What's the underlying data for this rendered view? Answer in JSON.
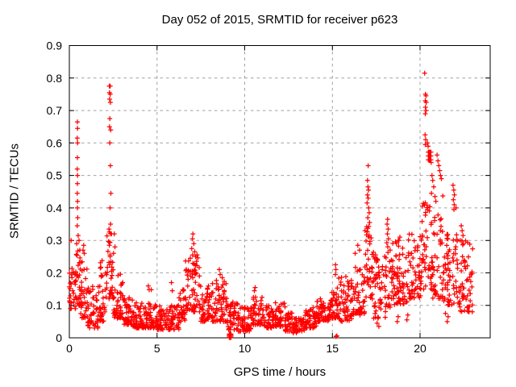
{
  "chart_data": {
    "type": "scatter",
    "title": "Day 052 of 2015, SRMTID for receiver p623",
    "xlabel": "GPS time / hours",
    "ylabel": "SRMTID / TECUs",
    "xlim": [
      0,
      24
    ],
    "ylim": [
      0,
      0.9
    ],
    "xticks": {
      "values": [
        0,
        5,
        10,
        15,
        20
      ],
      "labels": [
        "0",
        "5",
        "10",
        "15",
        "20"
      ]
    },
    "yticks": {
      "values": [
        0,
        0.1,
        0.2,
        0.3,
        0.4,
        0.5,
        0.6,
        0.7,
        0.8,
        0.9
      ],
      "labels": [
        "0",
        "0.1",
        "0.2",
        "0.3",
        "0.4",
        "0.5",
        "0.6",
        "0.7",
        "0.8",
        "0.9"
      ]
    },
    "grid": true,
    "legend": "none",
    "marker": "plus",
    "marker_color": "#ff0000",
    "grid_color": "#a0a0a0",
    "axis_color": "#000000",
    "background": "#ffffff",
    "data_extent_hours": [
      0,
      23.0
    ],
    "encoding_note": "bands = dense scatter envelopes [t_start, t_end, n_points, v_min, v_max, skew_toward_min]; outliers = individual visible points [hour, TECUs]; dense_clusters = solid blobs of overlapping markers",
    "bands": [
      [
        0.0,
        0.35,
        30,
        0.09,
        0.26,
        1.7
      ],
      [
        0.35,
        0.65,
        26,
        0.1,
        0.3,
        1.5
      ],
      [
        0.65,
        1.05,
        34,
        0.06,
        0.24,
        1.8
      ],
      [
        1.05,
        1.65,
        48,
        0.03,
        0.16,
        2.0
      ],
      [
        1.65,
        2.05,
        34,
        0.05,
        0.24,
        1.9
      ],
      [
        2.05,
        2.5,
        38,
        0.12,
        0.33,
        1.5
      ],
      [
        2.5,
        3.05,
        44,
        0.06,
        0.2,
        1.9
      ],
      [
        3.05,
        3.6,
        44,
        0.04,
        0.13,
        1.6
      ],
      [
        3.6,
        4.4,
        62,
        0.03,
        0.11,
        1.6
      ],
      [
        4.4,
        5.0,
        46,
        0.03,
        0.12,
        1.8
      ],
      [
        5.0,
        6.25,
        95,
        0.025,
        0.1,
        1.6
      ],
      [
        6.25,
        6.6,
        28,
        0.05,
        0.15,
        1.5
      ],
      [
        6.6,
        7.45,
        66,
        0.08,
        0.26,
        1.5
      ],
      [
        7.45,
        8.15,
        54,
        0.05,
        0.16,
        1.6
      ],
      [
        8.15,
        9.0,
        64,
        0.05,
        0.18,
        1.7
      ],
      [
        9.0,
        9.6,
        44,
        0.025,
        0.11,
        1.5
      ],
      [
        9.6,
        10.4,
        58,
        0.02,
        0.095,
        1.5
      ],
      [
        10.4,
        11.0,
        44,
        0.04,
        0.135,
        1.7
      ],
      [
        11.0,
        11.7,
        52,
        0.03,
        0.1,
        1.6
      ],
      [
        11.7,
        12.3,
        44,
        0.035,
        0.115,
        1.8
      ],
      [
        12.3,
        12.75,
        32,
        0.02,
        0.08,
        1.5
      ],
      [
        12.75,
        13.4,
        48,
        0.015,
        0.06,
        1.3
      ],
      [
        13.4,
        14.1,
        52,
        0.03,
        0.1,
        1.6
      ],
      [
        14.1,
        14.8,
        52,
        0.05,
        0.125,
        1.7
      ],
      [
        14.8,
        15.35,
        40,
        0.06,
        0.16,
        1.6
      ],
      [
        15.35,
        16.1,
        56,
        0.05,
        0.19,
        1.6
      ],
      [
        16.1,
        16.85,
        56,
        0.07,
        0.24,
        1.6
      ],
      [
        16.85,
        17.35,
        40,
        0.12,
        0.35,
        1.3
      ],
      [
        17.35,
        18.05,
        52,
        0.06,
        0.26,
        1.5
      ],
      [
        18.05,
        18.55,
        38,
        0.09,
        0.3,
        1.4
      ],
      [
        18.55,
        19.3,
        56,
        0.1,
        0.3,
        1.5
      ],
      [
        19.3,
        20.05,
        56,
        0.12,
        0.32,
        1.4
      ],
      [
        20.05,
        20.65,
        46,
        0.15,
        0.42,
        1.2
      ],
      [
        20.65,
        21.35,
        52,
        0.12,
        0.38,
        1.5
      ],
      [
        21.35,
        22.25,
        66,
        0.1,
        0.32,
        1.7
      ],
      [
        22.25,
        23.0,
        56,
        0.08,
        0.31,
        1.6
      ]
    ],
    "dense_clusters": [
      {
        "t0": 9.12,
        "t1": 9.22,
        "v0": 0.001,
        "v1": 0.012,
        "nx": 5,
        "ny": 4
      },
      {
        "t0": 20.47,
        "t1": 20.62,
        "v0": 0.548,
        "v1": 0.572,
        "nx": 4,
        "ny": 3
      }
    ],
    "outliers": [
      [
        0.46,
        0.665
      ],
      [
        0.47,
        0.645
      ],
      [
        0.45,
        0.615
      ],
      [
        0.47,
        0.6
      ],
      [
        0.46,
        0.555
      ],
      [
        0.45,
        0.52
      ],
      [
        0.47,
        0.5
      ],
      [
        0.46,
        0.475
      ],
      [
        0.45,
        0.445
      ],
      [
        0.47,
        0.42
      ],
      [
        0.46,
        0.4
      ],
      [
        0.48,
        0.37
      ],
      [
        0.45,
        0.345
      ],
      [
        0.5,
        0.315
      ],
      [
        0.55,
        0.3
      ],
      [
        0.42,
        0.29
      ],
      [
        0.6,
        0.27
      ],
      [
        0.1,
        0.3
      ],
      [
        0.78,
        0.27
      ],
      [
        0.82,
        0.285
      ],
      [
        0.85,
        0.26
      ],
      [
        2.28,
        0.775
      ],
      [
        2.33,
        0.775
      ],
      [
        2.29,
        0.755
      ],
      [
        2.33,
        0.75
      ],
      [
        2.3,
        0.735
      ],
      [
        2.34,
        0.725
      ],
      [
        2.31,
        0.675
      ],
      [
        2.29,
        0.65
      ],
      [
        2.36,
        0.64
      ],
      [
        2.31,
        0.6
      ],
      [
        2.34,
        0.53
      ],
      [
        2.37,
        0.445
      ],
      [
        2.32,
        0.4
      ],
      [
        2.35,
        0.35
      ],
      [
        2.26,
        0.335
      ],
      [
        2.4,
        0.32
      ],
      [
        2.56,
        0.32
      ],
      [
        2.6,
        0.28
      ],
      [
        2.52,
        0.26
      ],
      [
        4.5,
        0.16
      ],
      [
        4.55,
        0.148
      ],
      [
        4.67,
        0.148
      ],
      [
        5.82,
        0.17
      ],
      [
        5.87,
        0.145
      ],
      [
        7.05,
        0.32
      ],
      [
        7.02,
        0.305
      ],
      [
        7.1,
        0.29
      ],
      [
        6.98,
        0.275
      ],
      [
        7.15,
        0.265
      ],
      [
        7.2,
        0.25
      ],
      [
        6.9,
        0.245
      ],
      [
        7.25,
        0.235
      ],
      [
        8.55,
        0.21
      ],
      [
        8.6,
        0.195
      ],
      [
        8.72,
        0.185
      ],
      [
        10.6,
        0.155
      ],
      [
        10.55,
        0.145
      ],
      [
        15.18,
        0.225
      ],
      [
        15.2,
        0.21
      ],
      [
        15.17,
        0.195
      ],
      [
        15.21,
        0.004
      ],
      [
        15.26,
        0.006
      ],
      [
        16.45,
        0.285
      ],
      [
        16.55,
        0.27
      ],
      [
        16.3,
        0.26
      ],
      [
        17.04,
        0.53
      ],
      [
        17.0,
        0.485
      ],
      [
        17.03,
        0.465
      ],
      [
        17.06,
        0.455
      ],
      [
        17.0,
        0.44
      ],
      [
        17.04,
        0.43
      ],
      [
        16.98,
        0.415
      ],
      [
        17.07,
        0.4
      ],
      [
        17.1,
        0.385
      ],
      [
        17.02,
        0.37
      ],
      [
        17.12,
        0.355
      ],
      [
        17.55,
        0.045
      ],
      [
        17.6,
        0.06
      ],
      [
        17.65,
        0.035
      ],
      [
        18.7,
        0.05
      ],
      [
        18.75,
        0.065
      ],
      [
        19.25,
        0.055
      ],
      [
        19.3,
        0.07
      ],
      [
        21.55,
        0.05
      ],
      [
        21.6,
        0.065
      ],
      [
        21.45,
        0.075
      ],
      [
        18.15,
        0.365
      ],
      [
        18.12,
        0.35
      ],
      [
        18.18,
        0.335
      ],
      [
        18.14,
        0.32
      ],
      [
        18.2,
        0.305
      ],
      [
        18.85,
        0.31
      ],
      [
        18.8,
        0.3
      ],
      [
        20.26,
        0.815
      ],
      [
        20.31,
        0.75
      ],
      [
        20.34,
        0.745
      ],
      [
        20.3,
        0.73
      ],
      [
        20.35,
        0.725
      ],
      [
        20.31,
        0.71
      ],
      [
        20.34,
        0.7
      ],
      [
        20.3,
        0.69
      ],
      [
        20.29,
        0.625
      ],
      [
        20.32,
        0.61
      ],
      [
        20.3,
        0.595
      ],
      [
        20.42,
        0.6
      ],
      [
        20.46,
        0.59
      ],
      [
        20.63,
        0.54
      ],
      [
        20.68,
        0.5
      ],
      [
        20.72,
        0.485
      ],
      [
        20.78,
        0.465
      ],
      [
        20.65,
        0.445
      ],
      [
        20.85,
        0.435
      ],
      [
        20.9,
        0.42
      ],
      [
        20.97,
        0.563
      ],
      [
        21.02,
        0.545
      ],
      [
        21.07,
        0.53
      ],
      [
        21.12,
        0.515
      ],
      [
        21.17,
        0.5
      ],
      [
        21.22,
        0.49
      ],
      [
        21.3,
        0.437
      ],
      [
        21.88,
        0.47
      ],
      [
        21.92,
        0.455
      ],
      [
        21.96,
        0.44
      ],
      [
        21.9,
        0.425
      ],
      [
        21.95,
        0.41
      ],
      [
        21.93,
        0.395
      ],
      [
        22.05,
        0.4
      ],
      [
        22.35,
        0.345
      ],
      [
        22.4,
        0.33
      ],
      [
        22.45,
        0.315
      ],
      [
        22.3,
        0.3
      ]
    ]
  }
}
